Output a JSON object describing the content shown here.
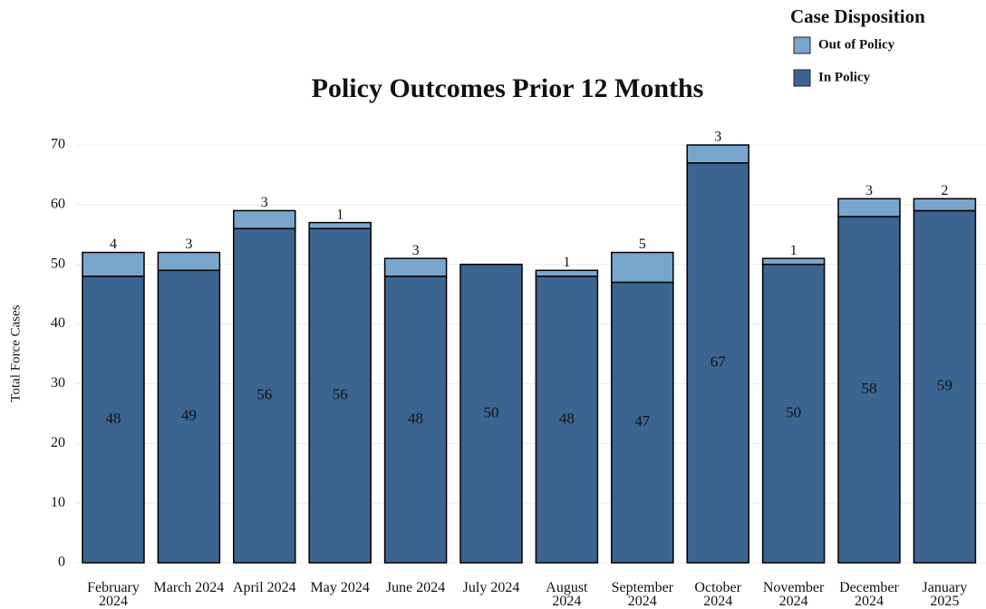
{
  "chart_data": {
    "type": "stacked_bar",
    "title": "Policy Outcomes Prior 12 Months",
    "y_label": "Total Force Cases",
    "legend_title": "Case Disposition",
    "legend": "top-right",
    "grid": true,
    "categories": [
      "February 2024",
      "March 2024",
      "April 2024",
      "May 2024",
      "June 2024",
      "July 2024",
      "August 2024",
      "September 2024",
      "October 2024",
      "November 2024",
      "December 2024",
      "January 2025"
    ],
    "series": [
      {
        "name": "In Policy",
        "color": "#3b6590",
        "values": [
          48,
          49,
          56,
          56,
          48,
          50,
          48,
          47,
          67,
          50,
          58,
          59
        ]
      },
      {
        "name": "Out of Policy",
        "color": "#79a6cd",
        "values": [
          4,
          3,
          3,
          1,
          3,
          null,
          1,
          5,
          3,
          1,
          3,
          2
        ]
      }
    ],
    "ylim": [
      0,
      70
    ],
    "yticks": [
      0,
      10,
      20,
      30,
      40,
      50,
      60,
      70
    ]
  }
}
